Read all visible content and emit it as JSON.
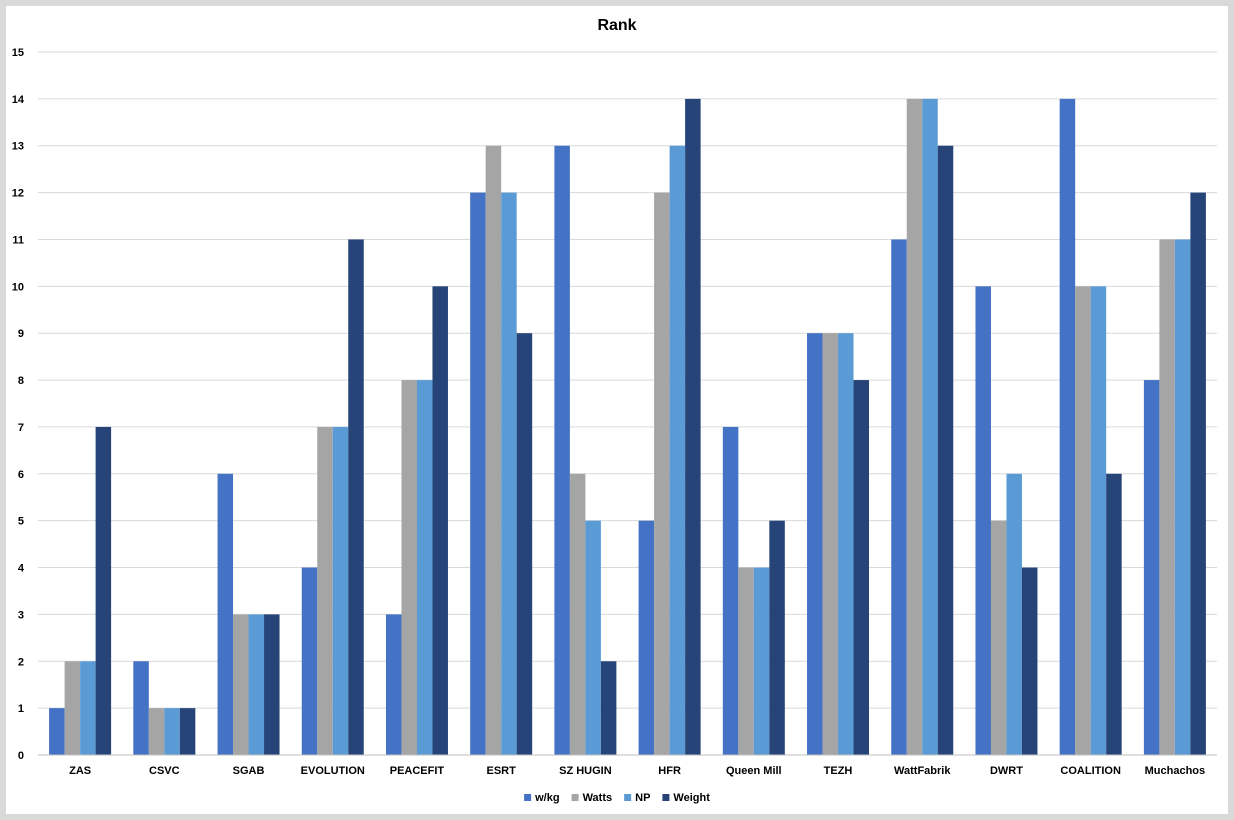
{
  "chart_data": {
    "type": "bar",
    "title": "Rank",
    "xlabel": "",
    "ylabel": "",
    "ylim": [
      0,
      15
    ],
    "yticks": [
      0,
      1,
      2,
      3,
      4,
      5,
      6,
      7,
      8,
      9,
      10,
      11,
      12,
      13,
      14,
      15
    ],
    "grid": true,
    "legend_position": "bottom",
    "categories": [
      "ZAS",
      "CSVC",
      "SGAB",
      "EVOLUTION",
      "PEACEFIT",
      "ESRT",
      "SZ HUGIN",
      "HFR",
      "Queen Mill",
      "TEZH",
      "WattFabrik",
      "DWRT",
      "COALITION",
      "Muchachos"
    ],
    "series": [
      {
        "name": "w/kg",
        "color": "#4472c4",
        "values": [
          1,
          2,
          6,
          4,
          3,
          12,
          13,
          5,
          7,
          9,
          11,
          10,
          14,
          8
        ]
      },
      {
        "name": "Watts",
        "color": "#a5a5a5",
        "values": [
          2,
          1,
          3,
          7,
          8,
          13,
          6,
          12,
          4,
          9,
          14,
          5,
          10,
          11
        ]
      },
      {
        "name": "NP",
        "color": "#5b9bd5",
        "values": [
          2,
          1,
          3,
          7,
          8,
          12,
          5,
          13,
          4,
          9,
          14,
          6,
          10,
          11
        ]
      },
      {
        "name": "Weight",
        "color": "#264478",
        "values": [
          7,
          1,
          3,
          11,
          10,
          9,
          2,
          14,
          5,
          8,
          13,
          4,
          6,
          12
        ]
      }
    ]
  }
}
